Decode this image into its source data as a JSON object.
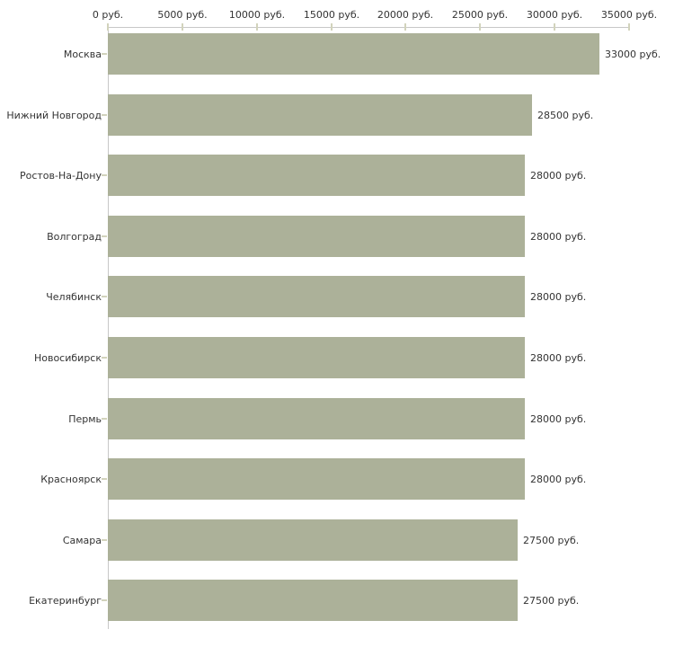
{
  "chart_data": {
    "type": "bar",
    "orientation": "horizontal",
    "categories": [
      "Москва",
      "Нижний Новгород",
      "Ростов-На-Дону",
      "Волгоград",
      "Челябинск",
      "Новосибирск",
      "Пермь",
      "Красноярск",
      "Самара",
      "Екатеринбург"
    ],
    "values": [
      33000,
      28500,
      28000,
      28000,
      28000,
      28000,
      28000,
      28000,
      27500,
      27500
    ],
    "value_labels": [
      "33000 руб.",
      "28500 руб.",
      "28000 руб.",
      "28000 руб.",
      "28000 руб.",
      "28000 руб.",
      "28000 руб.",
      "28000 руб.",
      "27500 руб.",
      "27500 руб."
    ],
    "x_axis": {
      "position": "top",
      "ticks": [
        "0 руб.",
        "5000 руб.",
        "10000 руб.",
        "15000 руб.",
        "20000 руб.",
        "25000 руб.",
        "30000 руб.",
        "35000 руб."
      ],
      "tick_values": [
        0,
        5000,
        10000,
        15000,
        20000,
        25000,
        30000,
        35000
      ],
      "min": 0,
      "max": 35000
    },
    "legend": "none",
    "grid": false,
    "colors": {
      "bar": "#acb199",
      "axis_line": "#c7c7c7",
      "tick_mark": "#d2d3bc",
      "text": "#333333",
      "background": "#ffffff"
    }
  }
}
